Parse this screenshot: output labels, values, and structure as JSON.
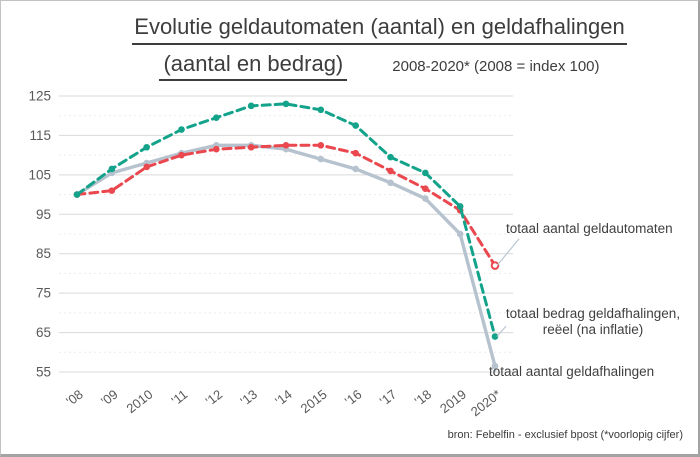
{
  "title": {
    "line1": "Evolutie geldautomaten (aantal) en geldafhalingen",
    "line2": "(aantal en bedrag)",
    "subtitle": "2008-2020* (2008 = index 100)"
  },
  "source": "bron: Febelfin - exclusief bpost (*voorlopig cijfer)",
  "chart_data": {
    "type": "line",
    "title": "Evolutie geldautomaten (aantal) en geldafhalingen (aantal en bedrag)",
    "subtitle": "2008-2020* (2008 = index 100)",
    "categories": [
      "'08",
      "'09",
      "2010",
      "'11",
      "'12",
      "'13",
      "'14",
      "2015",
      "'16",
      "'17",
      "'18",
      "2019",
      "2020*"
    ],
    "ylim": [
      55,
      125
    ],
    "yticks": [
      125,
      115,
      105,
      95,
      85,
      75,
      65,
      55
    ],
    "yticks_minor": [
      120,
      110,
      100,
      90,
      80,
      70,
      60
    ],
    "grid": true,
    "legend_position": "end-of-line labels",
    "series": [
      {
        "name": "totaal aantal geldafhalingen",
        "color": "#b6c2ce",
        "style": "solid",
        "values": [
          100,
          105.5,
          108,
          110.5,
          112.5,
          112.5,
          111.5,
          109,
          106.5,
          103,
          99,
          90,
          56.5
        ]
      },
      {
        "name": "totaal aantal geldautomaten",
        "color": "#ea474e",
        "style": "dashed",
        "last_marker": "hollow",
        "values": [
          100,
          101,
          107,
          110,
          111.5,
          112,
          112.5,
          112.5,
          110.5,
          106,
          101.5,
          96,
          82
        ]
      },
      {
        "name": "totaal bedrag geldafhalingen, reëel (na inflatie)",
        "color": "#13a28a",
        "style": "dashed",
        "values": [
          100,
          106.5,
          112,
          116.5,
          119.5,
          122.5,
          123,
          121.5,
          117.5,
          109.5,
          105.5,
          97,
          64
        ]
      }
    ],
    "annotations": [
      {
        "text": "totaal aantal geldautomaten",
        "series": 1
      },
      {
        "text": "totaal bedrag geldafhalingen,",
        "text2": "reëel (na inflatie)",
        "series": 2
      },
      {
        "text": "totaal aantal geldafhalingen",
        "series": 0
      }
    ],
    "leader_color": "#b9c6d2"
  }
}
